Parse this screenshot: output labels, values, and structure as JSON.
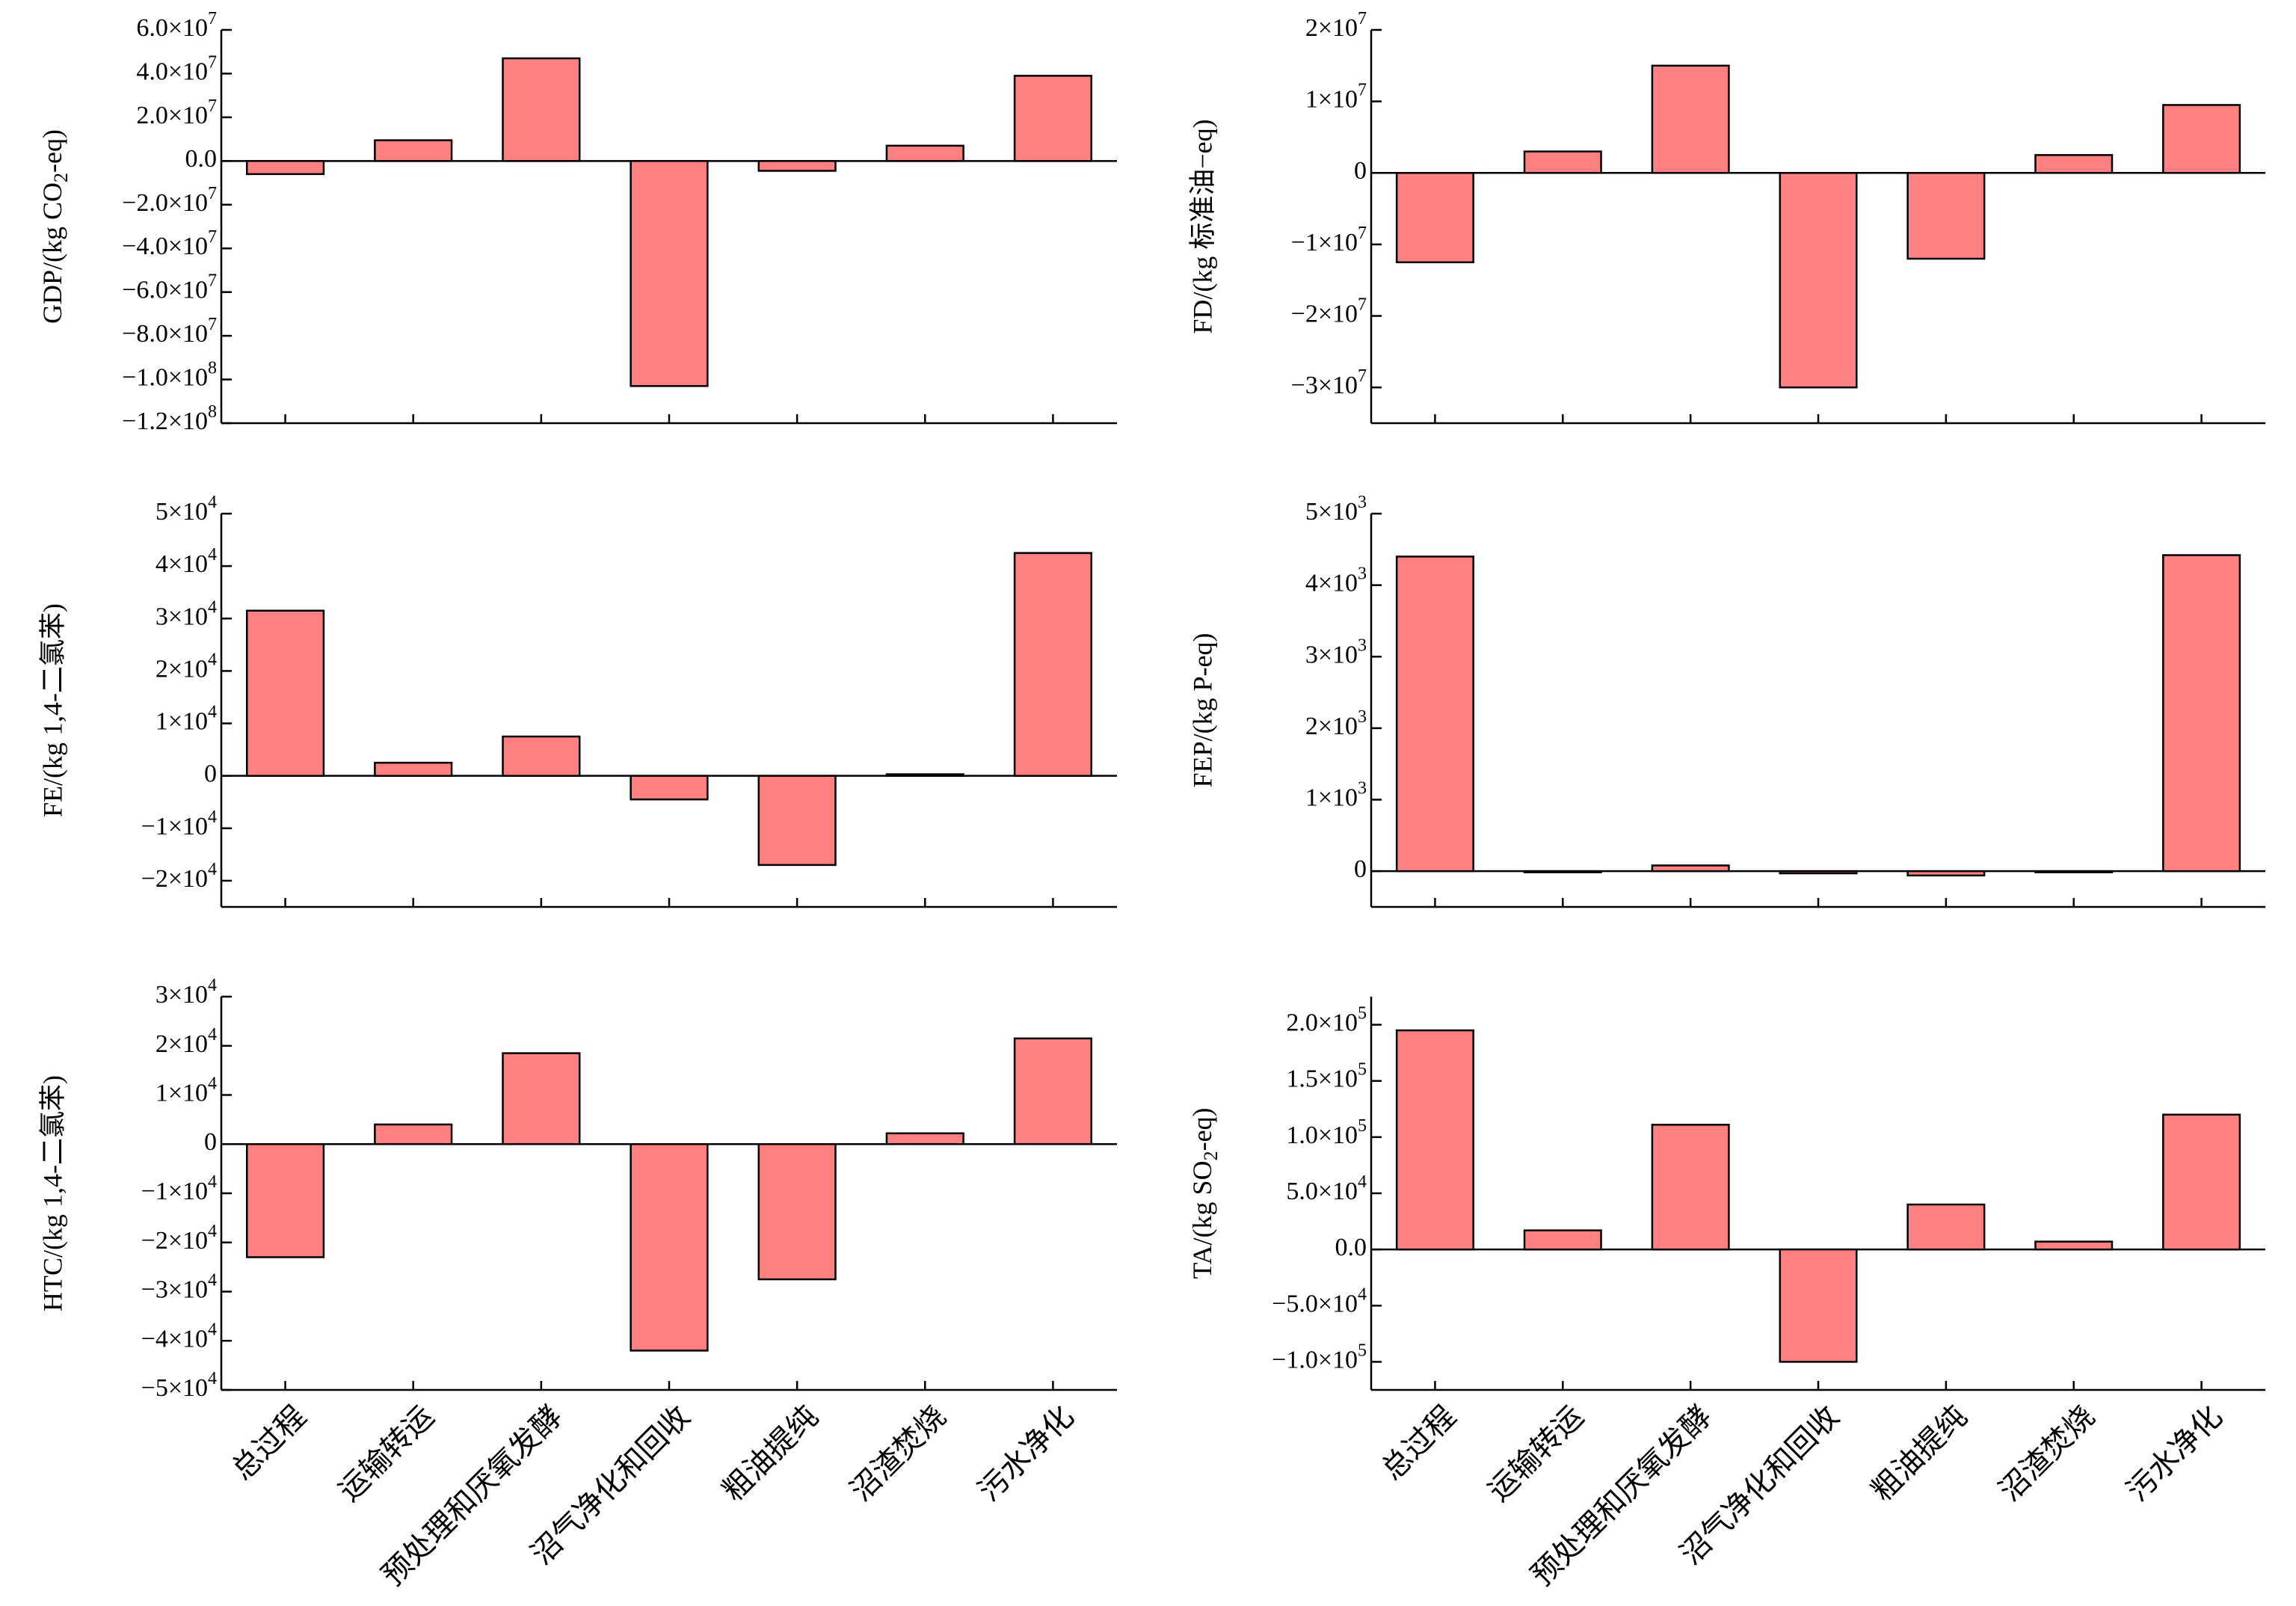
{
  "bar_color": "#fe8080",
  "categories": [
    "总过程",
    "运输转运",
    "预处理和厌氧发酵",
    "沼气净化和回收",
    "粗油提纯",
    "沼渣焚烧",
    "污水净化"
  ],
  "chart_data": [
    {
      "type": "bar",
      "ylabel": "GDP/(kg CO2-eq)",
      "ylim": [
        -120000000,
        60000000
      ],
      "yticks": [
        {
          "value": 60000000,
          "label": "6.0×10^7"
        },
        {
          "value": 40000000,
          "label": "4.0×10^7"
        },
        {
          "value": 20000000,
          "label": "2.0×10^7"
        },
        {
          "value": 0,
          "label": "0.0"
        },
        {
          "value": -20000000,
          "label": "−2.0×10^7"
        },
        {
          "value": -40000000,
          "label": "−4.0×10^7"
        },
        {
          "value": -60000000,
          "label": "−6.0×10^7"
        },
        {
          "value": -80000000,
          "label": "−8.0×10^7"
        },
        {
          "value": -100000000,
          "label": "−1.0×10^8"
        },
        {
          "value": -120000000,
          "label": "−1.2×10^8"
        }
      ],
      "values": [
        -6000000,
        9500000,
        47000000,
        -103000000,
        -4500000,
        7000000,
        39000000
      ]
    },
    {
      "type": "bar",
      "ylabel": "FD/(kg 标准油−eq)",
      "ylim": [
        -35000000,
        20000000
      ],
      "yticks": [
        {
          "value": 20000000,
          "label": "2×10^7"
        },
        {
          "value": 10000000,
          "label": "1×10^7"
        },
        {
          "value": 0,
          "label": "0"
        },
        {
          "value": -10000000,
          "label": "−1×10^7"
        },
        {
          "value": -20000000,
          "label": "−2×10^7"
        },
        {
          "value": -30000000,
          "label": "−3×10^7"
        }
      ],
      "values": [
        -12500000,
        3000000,
        15000000,
        -30000000,
        -12000000,
        2500000,
        9500000
      ]
    },
    {
      "type": "bar",
      "ylabel": "FE/(kg 1,4-二氯苯)",
      "ylim": [
        -25000,
        50000
      ],
      "yticks": [
        {
          "value": 50000,
          "label": "5×10^4"
        },
        {
          "value": 40000,
          "label": "4×10^4"
        },
        {
          "value": 30000,
          "label": "3×10^4"
        },
        {
          "value": 20000,
          "label": "2×10^4"
        },
        {
          "value": 10000,
          "label": "1×10^4"
        },
        {
          "value": 0,
          "label": "0"
        },
        {
          "value": -10000,
          "label": "−1×10^4"
        },
        {
          "value": -20000,
          "label": "−2×10^4"
        }
      ],
      "values": [
        31500,
        2500,
        7500,
        -4500,
        -17000,
        300,
        42500
      ]
    },
    {
      "type": "bar",
      "ylabel": "FEP/(kg P-eq)",
      "ylim": [
        -500,
        5000
      ],
      "yticks": [
        {
          "value": 5000,
          "label": "5×10^3"
        },
        {
          "value": 4000,
          "label": "4×10^3"
        },
        {
          "value": 3000,
          "label": "3×10^3"
        },
        {
          "value": 2000,
          "label": "2×10^3"
        },
        {
          "value": 1000,
          "label": "1×10^3"
        },
        {
          "value": 0,
          "label": "0"
        }
      ],
      "values": [
        4400,
        0,
        80,
        -30,
        -60,
        0,
        4420
      ]
    },
    {
      "type": "bar",
      "ylabel": "HTC/(kg 1,4-二氯苯)",
      "ylim": [
        -50000,
        30000
      ],
      "yticks": [
        {
          "value": 30000,
          "label": "3×10^4"
        },
        {
          "value": 20000,
          "label": "2×10^4"
        },
        {
          "value": 10000,
          "label": "1×10^4"
        },
        {
          "value": 0,
          "label": "0"
        },
        {
          "value": -10000,
          "label": "−1×10^4"
        },
        {
          "value": -20000,
          "label": "−2×10^4"
        },
        {
          "value": -30000,
          "label": "−3×10^4"
        },
        {
          "value": -40000,
          "label": "−4×10^4"
        },
        {
          "value": -50000,
          "label": "−5×10^4"
        }
      ],
      "values": [
        -23000,
        4000,
        18500,
        -42000,
        -27500,
        2200,
        21500
      ]
    },
    {
      "type": "bar",
      "ylabel": "TA/(kg SO2-eq)",
      "ylim": [
        -125000,
        225000
      ],
      "yticks": [
        {
          "value": 200000,
          "label": "2.0×10^5"
        },
        {
          "value": 150000,
          "label": "1.5×10^5"
        },
        {
          "value": 100000,
          "label": "1.0×10^5"
        },
        {
          "value": 50000,
          "label": "5.0×10^4"
        },
        {
          "value": 0,
          "label": "0.0"
        },
        {
          "value": -50000,
          "label": "−5.0×10^4"
        },
        {
          "value": -100000,
          "label": "−1.0×10^5"
        }
      ],
      "values": [
        195000,
        17000,
        111000,
        -100000,
        40000,
        7000,
        120000
      ]
    }
  ]
}
